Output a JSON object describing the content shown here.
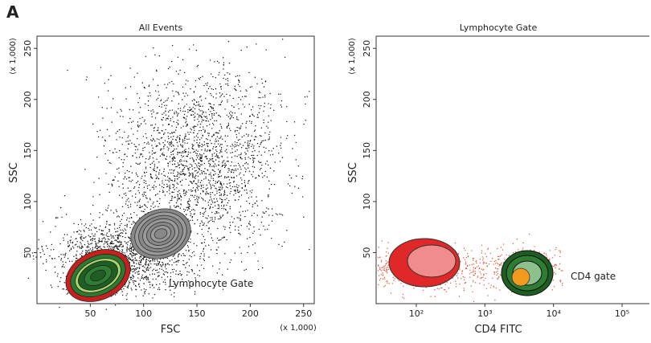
{
  "panel_label": "A",
  "chart_data": [
    {
      "type": "scatter",
      "title": "All Events",
      "x_label": "FSC",
      "y_label": "SSC",
      "x_unit_note": "(x 1,000)",
      "y_unit_note": "(x 1,000)",
      "annotation": "Lymphocyte Gate",
      "xlim": [
        0,
        260
      ],
      "ylim": [
        0,
        262
      ],
      "xticks": [
        50,
        100,
        150,
        200,
        250
      ],
      "yticks": [
        50,
        100,
        150,
        200,
        250
      ]
    },
    {
      "type": "scatter",
      "title": "Lymphocyte Gate",
      "x_label": "CD4 FITC",
      "y_label": "SSC",
      "y_unit_note": "(x 1,000)",
      "annotation": "CD4 gate",
      "xscale": "log",
      "xlim": [
        26,
        250000
      ],
      "ylim": [
        0,
        262
      ],
      "xticks": [
        {
          "value": 100,
          "label": "10²"
        },
        {
          "value": 1000,
          "label": "10³"
        },
        {
          "value": 10000,
          "label": "10⁴"
        },
        {
          "value": 100000,
          "label": "10⁵"
        }
      ],
      "yticks": [
        50,
        100,
        150,
        200,
        250
      ]
    }
  ]
}
